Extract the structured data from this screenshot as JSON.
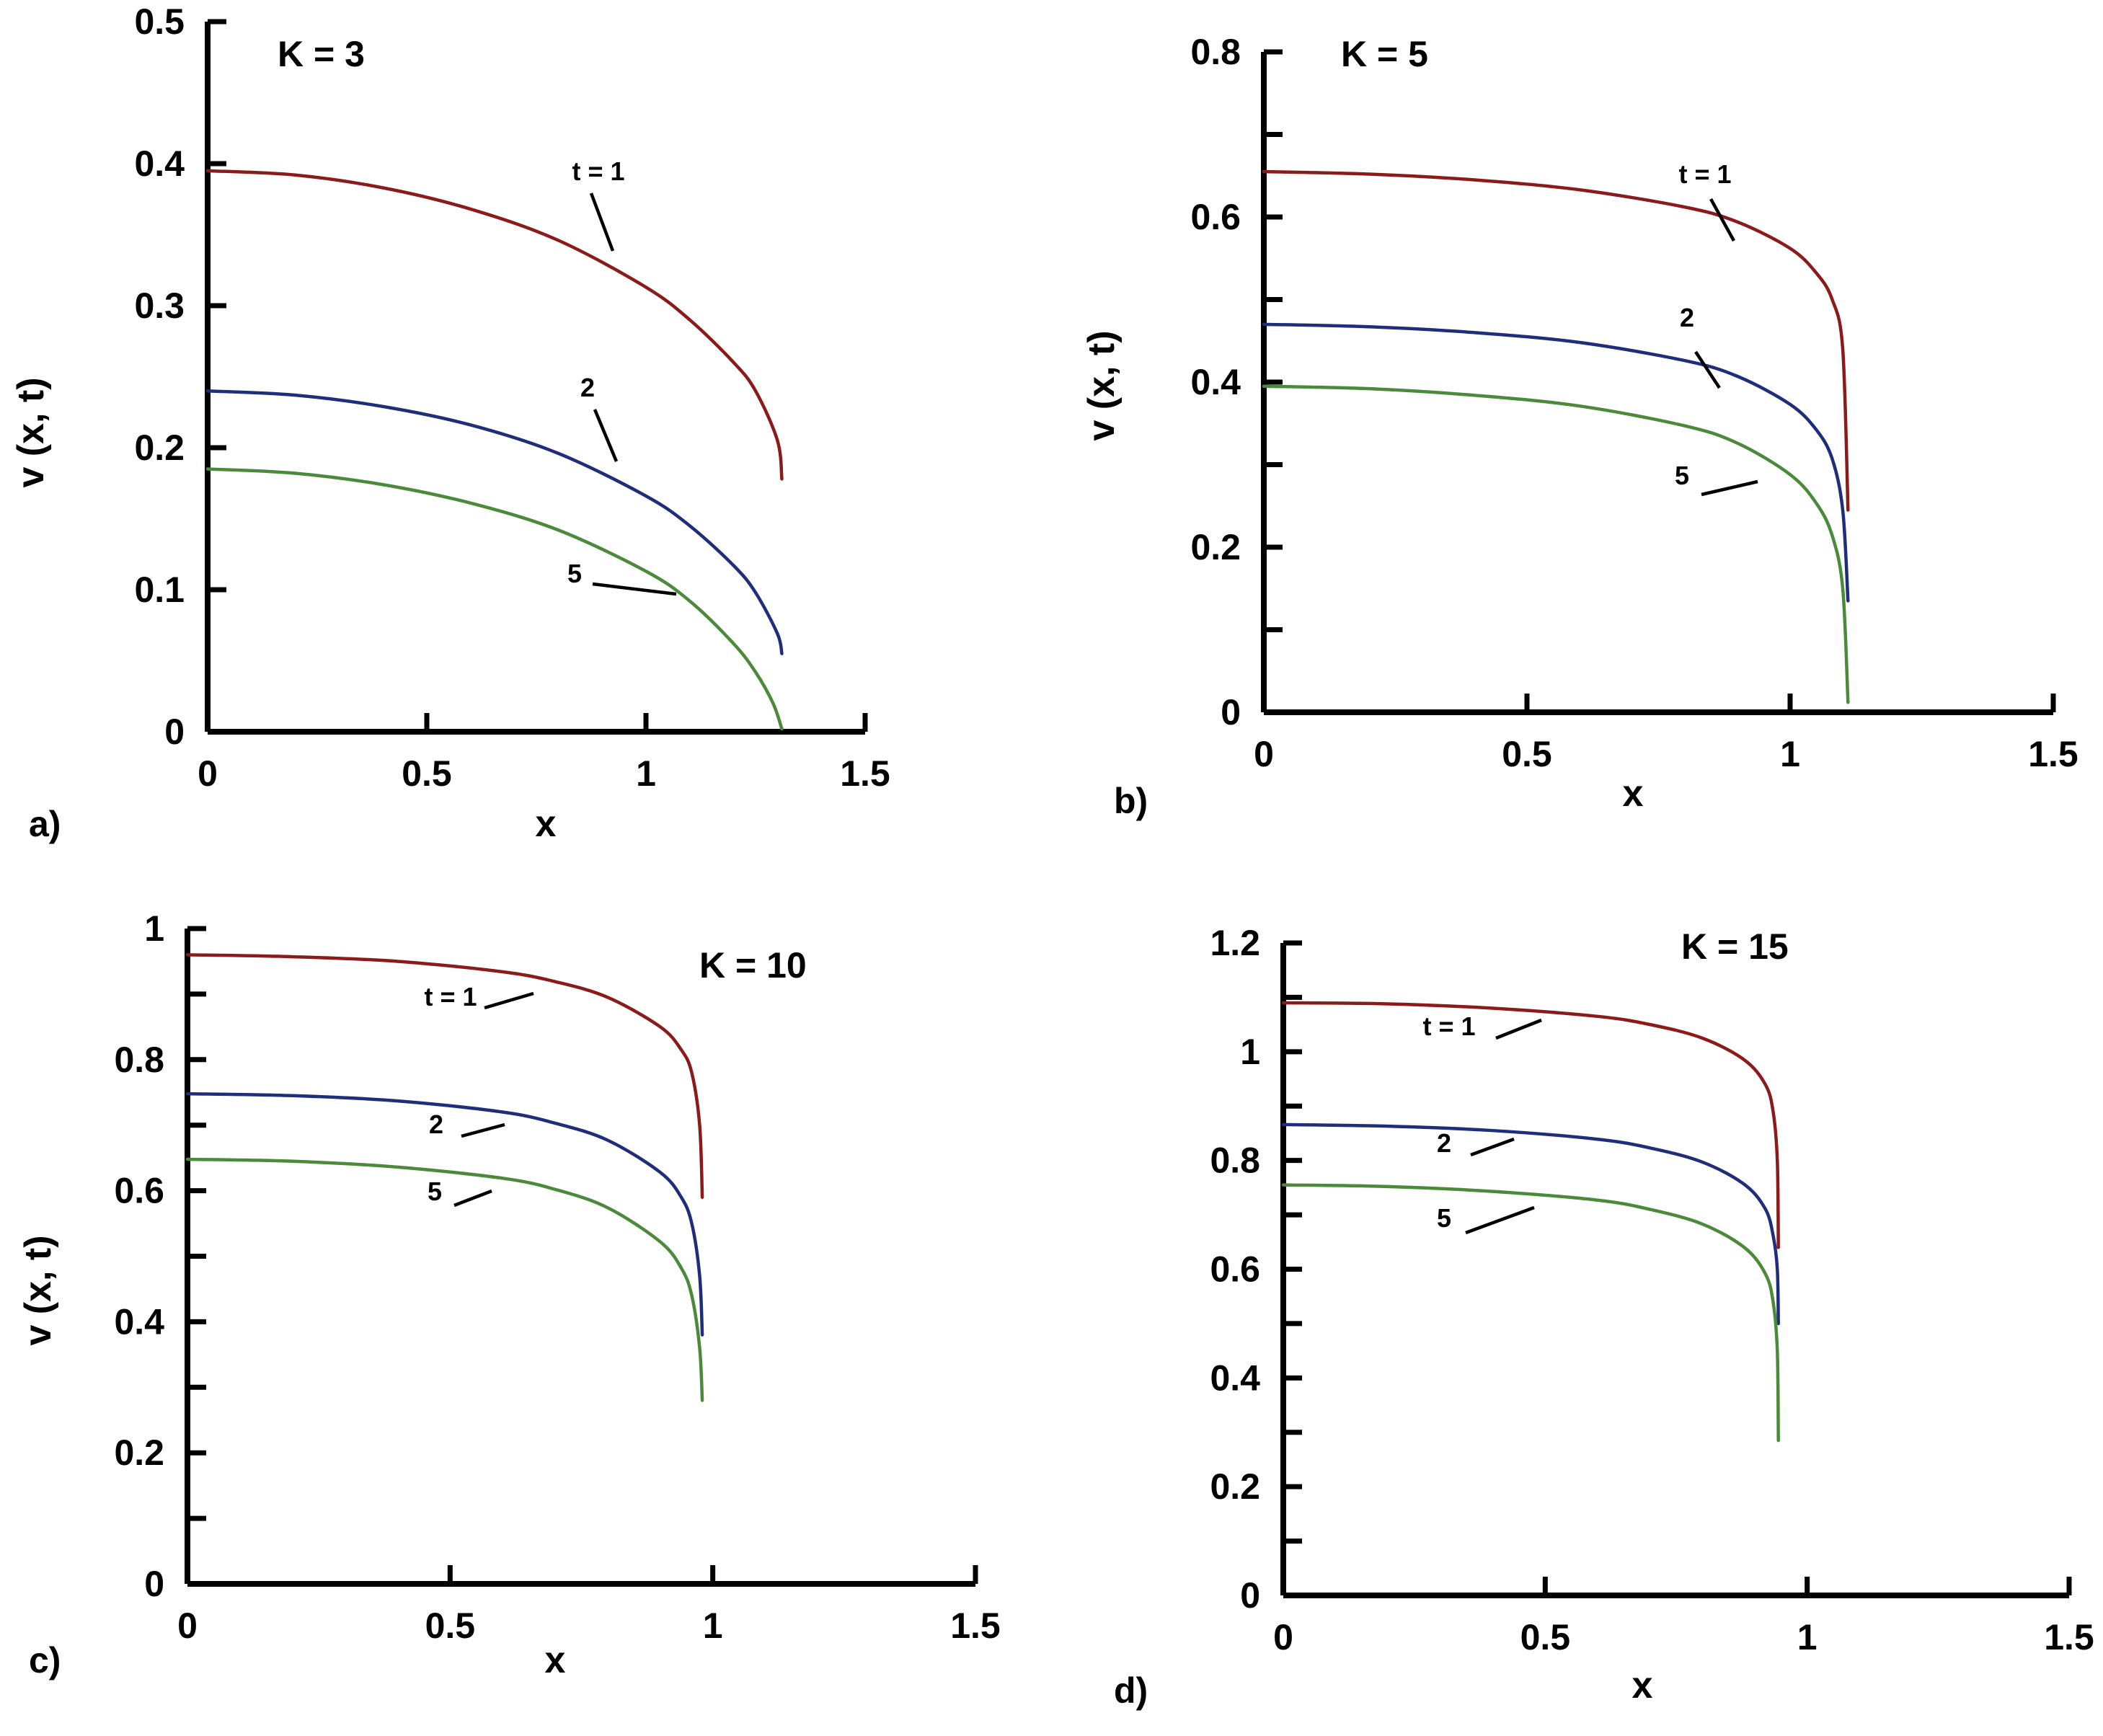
{
  "chart_data": [
    {
      "type": "line",
      "panel_label": "a)",
      "title": "K = 3",
      "xlabel": "x",
      "ylabel": "v (x, t)",
      "xlim": [
        0,
        1.5
      ],
      "ylim": [
        0,
        0.5
      ],
      "x_ticks": [
        "0",
        "0.5",
        "1",
        "1.5"
      ],
      "y_ticks": [
        "0",
        "0.1",
        "0.2",
        "0.3",
        "0.4",
        "0.5"
      ],
      "grid": false,
      "series": [
        {
          "name": "t = 1",
          "label": "t = 1",
          "color": "#8b1a1a",
          "x": [
            0,
            0.2,
            0.4,
            0.6,
            0.8,
            1.0,
            1.1,
            1.2,
            1.25,
            1.3,
            1.31
          ],
          "y": [
            0.395,
            0.392,
            0.383,
            0.368,
            0.346,
            0.313,
            0.29,
            0.26,
            0.24,
            0.205,
            0.178
          ]
        },
        {
          "name": "t = 2",
          "label": "2",
          "color": "#1f2d7a",
          "x": [
            0,
            0.2,
            0.4,
            0.6,
            0.8,
            1.0,
            1.1,
            1.2,
            1.25,
            1.3,
            1.31
          ],
          "y": [
            0.24,
            0.237,
            0.229,
            0.216,
            0.196,
            0.166,
            0.145,
            0.117,
            0.098,
            0.069,
            0.055
          ]
        },
        {
          "name": "t = 5",
          "label": "5",
          "color": "#4a8a3a",
          "x": [
            0,
            0.2,
            0.4,
            0.6,
            0.8,
            1.0,
            1.1,
            1.2,
            1.25,
            1.29,
            1.31
          ],
          "y": [
            0.185,
            0.182,
            0.174,
            0.161,
            0.142,
            0.113,
            0.092,
            0.062,
            0.042,
            0.02,
            0.002
          ]
        }
      ]
    },
    {
      "type": "line",
      "panel_label": "b)",
      "title": "K = 5",
      "xlabel": "x",
      "ylabel": "v (x, t)",
      "xlim": [
        0,
        1.5
      ],
      "ylim": [
        0,
        0.8
      ],
      "x_ticks": [
        "0",
        "0.5",
        "1",
        "1.5"
      ],
      "y_ticks": [
        "0",
        "0.2",
        "0.4",
        "0.6",
        "0.8"
      ],
      "grid": false,
      "series": [
        {
          "name": "t = 1",
          "label": "t = 1",
          "color": "#8b1a1a",
          "x": [
            0,
            0.2,
            0.4,
            0.6,
            0.8,
            0.9,
            1.0,
            1.05,
            1.08,
            1.1,
            1.11
          ],
          "y": [
            0.655,
            0.652,
            0.645,
            0.633,
            0.612,
            0.594,
            0.562,
            0.532,
            0.5,
            0.44,
            0.245
          ]
        },
        {
          "name": "t = 2",
          "label": "2",
          "color": "#1f2d7a",
          "x": [
            0,
            0.2,
            0.4,
            0.6,
            0.8,
            0.9,
            1.0,
            1.05,
            1.08,
            1.1,
            1.11
          ],
          "y": [
            0.47,
            0.467,
            0.46,
            0.448,
            0.426,
            0.407,
            0.373,
            0.342,
            0.307,
            0.245,
            0.135
          ]
        },
        {
          "name": "t = 5",
          "label": "5",
          "color": "#4a8a3a",
          "x": [
            0,
            0.2,
            0.4,
            0.6,
            0.8,
            0.9,
            1.0,
            1.05,
            1.08,
            1.1,
            1.11
          ],
          "y": [
            0.395,
            0.392,
            0.384,
            0.371,
            0.347,
            0.326,
            0.288,
            0.253,
            0.214,
            0.15,
            0.012
          ]
        }
      ]
    },
    {
      "type": "line",
      "panel_label": "c)",
      "title": "K = 10",
      "xlabel": "x",
      "ylabel": "v (x, t)",
      "xlim": [
        0,
        1.5
      ],
      "ylim": [
        0,
        1
      ],
      "x_ticks": [
        "0",
        "0.5",
        "1",
        "1.5"
      ],
      "y_ticks": [
        "0",
        "0.2",
        "0.4",
        "0.6",
        "0.8",
        "1"
      ],
      "grid": false,
      "series": [
        {
          "name": "t = 1",
          "label": "t = 1",
          "color": "#8b1a1a",
          "x": [
            0,
            0.2,
            0.4,
            0.6,
            0.7,
            0.8,
            0.9,
            0.94,
            0.96,
            0.975,
            0.98
          ],
          "y": [
            0.96,
            0.957,
            0.95,
            0.934,
            0.919,
            0.895,
            0.85,
            0.815,
            0.78,
            0.7,
            0.59
          ]
        },
        {
          "name": "t = 2",
          "label": "2",
          "color": "#1f2d7a",
          "x": [
            0,
            0.2,
            0.4,
            0.6,
            0.7,
            0.8,
            0.9,
            0.94,
            0.96,
            0.975,
            0.98
          ],
          "y": [
            0.748,
            0.745,
            0.737,
            0.72,
            0.703,
            0.677,
            0.628,
            0.59,
            0.55,
            0.47,
            0.38
          ]
        },
        {
          "name": "t = 5",
          "label": "5",
          "color": "#4a8a3a",
          "x": [
            0,
            0.2,
            0.4,
            0.6,
            0.7,
            0.8,
            0.9,
            0.94,
            0.96,
            0.975,
            0.98
          ],
          "y": [
            0.648,
            0.645,
            0.636,
            0.619,
            0.602,
            0.574,
            0.522,
            0.482,
            0.44,
            0.36,
            0.28
          ]
        }
      ]
    },
    {
      "type": "line",
      "panel_label": "d)",
      "title": "K = 15",
      "xlabel": "x",
      "ylabel": "",
      "xlim": [
        0,
        1.5
      ],
      "ylim": [
        0,
        1.2
      ],
      "x_ticks": [
        "0",
        "0.5",
        "1",
        "1.5"
      ],
      "y_ticks": [
        "0",
        "0.2",
        "0.4",
        "0.6",
        "0.8",
        "1",
        "1.2"
      ],
      "grid": false,
      "series": [
        {
          "name": "t = 1",
          "label": "t = 1",
          "color": "#8b1a1a",
          "x": [
            0,
            0.2,
            0.4,
            0.6,
            0.7,
            0.8,
            0.88,
            0.92,
            0.935,
            0.943,
            0.945
          ],
          "y": [
            1.09,
            1.088,
            1.08,
            1.065,
            1.05,
            1.025,
            0.985,
            0.94,
            0.89,
            0.8,
            0.64
          ]
        },
        {
          "name": "t = 2",
          "label": "2",
          "color": "#1f2d7a",
          "x": [
            0,
            0.2,
            0.4,
            0.6,
            0.7,
            0.8,
            0.88,
            0.92,
            0.935,
            0.943,
            0.945
          ],
          "y": [
            0.866,
            0.863,
            0.855,
            0.839,
            0.823,
            0.797,
            0.756,
            0.711,
            0.662,
            0.6,
            0.5
          ]
        },
        {
          "name": "t = 5",
          "label": "5",
          "color": "#4a8a3a",
          "x": [
            0,
            0.2,
            0.4,
            0.6,
            0.7,
            0.8,
            0.88,
            0.92,
            0.935,
            0.943,
            0.945
          ],
          "y": [
            0.755,
            0.752,
            0.743,
            0.727,
            0.71,
            0.683,
            0.64,
            0.592,
            0.54,
            0.45,
            0.285
          ]
        }
      ]
    }
  ]
}
